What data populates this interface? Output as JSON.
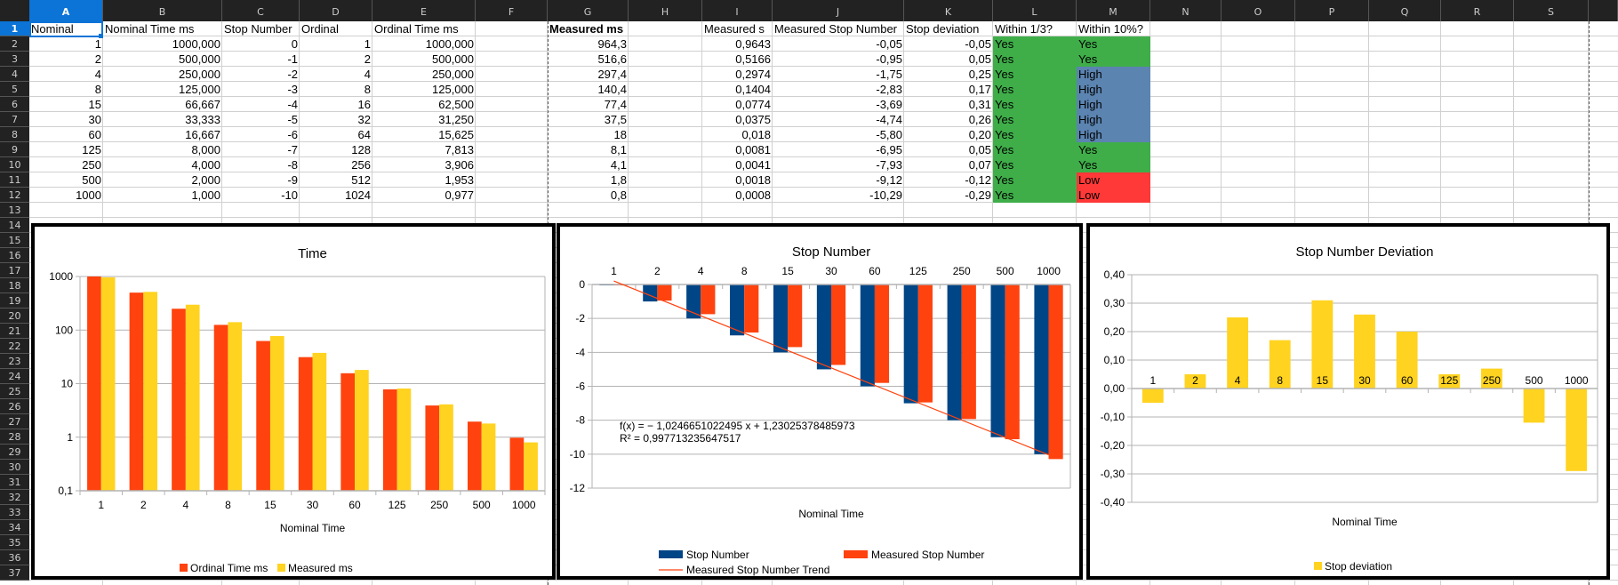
{
  "spreadsheet": {
    "columns": [
      "A",
      "B",
      "C",
      "D",
      "E",
      "F",
      "G",
      "H",
      "I",
      "J",
      "K",
      "L",
      "M",
      "N",
      "O",
      "P",
      "Q",
      "R",
      "S"
    ],
    "selected_cell": "A1",
    "rows": [
      "1",
      "2",
      "3",
      "4",
      "5",
      "6",
      "7",
      "8",
      "9",
      "10",
      "11",
      "12",
      "13",
      "14",
      "15",
      "16",
      "17",
      "18",
      "19",
      "20",
      "21",
      "22",
      "23",
      "24",
      "25",
      "26",
      "27",
      "28",
      "29",
      "30",
      "31",
      "32",
      "33",
      "34",
      "35",
      "36",
      "37"
    ],
    "headers": {
      "A": "Nominal",
      "B": "Nominal Time ms",
      "C": "Stop Number",
      "D": "Ordinal",
      "E": "Ordinal Time ms",
      "G": "Measured ms",
      "I": "Measured s",
      "J": "Measured Stop Number",
      "K": "Stop deviation",
      "L": "Within 1/3?",
      "M": "Within 10%?"
    },
    "data_rows": [
      {
        "A": "1",
        "B": "1000,000",
        "C": "0",
        "D": "1",
        "E": "1000,000",
        "G": "964,3",
        "I": "0,9643",
        "J": "-0,05",
        "K": "-0,05",
        "L": "Yes",
        "M": "Yes"
      },
      {
        "A": "2",
        "B": "500,000",
        "C": "-1",
        "D": "2",
        "E": "500,000",
        "G": "516,6",
        "I": "0,5166",
        "J": "-0,95",
        "K": "0,05",
        "L": "Yes",
        "M": "Yes"
      },
      {
        "A": "4",
        "B": "250,000",
        "C": "-2",
        "D": "4",
        "E": "250,000",
        "G": "297,4",
        "I": "0,2974",
        "J": "-1,75",
        "K": "0,25",
        "L": "Yes",
        "M": "High"
      },
      {
        "A": "8",
        "B": "125,000",
        "C": "-3",
        "D": "8",
        "E": "125,000",
        "G": "140,4",
        "I": "0,1404",
        "J": "-2,83",
        "K": "0,17",
        "L": "Yes",
        "M": "High"
      },
      {
        "A": "15",
        "B": "66,667",
        "C": "-4",
        "D": "16",
        "E": "62,500",
        "G": "77,4",
        "I": "0,0774",
        "J": "-3,69",
        "K": "0,31",
        "L": "Yes",
        "M": "High"
      },
      {
        "A": "30",
        "B": "33,333",
        "C": "-5",
        "D": "32",
        "E": "31,250",
        "G": "37,5",
        "I": "0,0375",
        "J": "-4,74",
        "K": "0,26",
        "L": "Yes",
        "M": "High"
      },
      {
        "A": "60",
        "B": "16,667",
        "C": "-6",
        "D": "64",
        "E": "15,625",
        "G": "18",
        "I": "0,018",
        "J": "-5,80",
        "K": "0,20",
        "L": "Yes",
        "M": "High"
      },
      {
        "A": "125",
        "B": "8,000",
        "C": "-7",
        "D": "128",
        "E": "7,813",
        "G": "8,1",
        "I": "0,0081",
        "J": "-6,95",
        "K": "0,05",
        "L": "Yes",
        "M": "Yes"
      },
      {
        "A": "250",
        "B": "4,000",
        "C": "-8",
        "D": "256",
        "E": "3,906",
        "G": "4,1",
        "I": "0,0041",
        "J": "-7,93",
        "K": "0,07",
        "L": "Yes",
        "M": "Yes"
      },
      {
        "A": "500",
        "B": "2,000",
        "C": "-9",
        "D": "512",
        "E": "1,953",
        "G": "1,8",
        "I": "0,0018",
        "J": "-9,12",
        "K": "-0,12",
        "L": "Yes",
        "M": "Low"
      },
      {
        "A": "1000",
        "B": "1,000",
        "C": "-10",
        "D": "1024",
        "E": "0,977",
        "G": "0,8",
        "I": "0,0008",
        "J": "-10,29",
        "K": "-0,29",
        "L": "Yes",
        "M": "Low"
      }
    ],
    "status_colors": {
      "Yes": "#3fae49",
      "High": "#5b84b1",
      "Low": "#ff3838"
    }
  },
  "chart_data": [
    {
      "type": "bar",
      "title": "Time",
      "xlabel": "Nominal Time",
      "ylabel": "",
      "yscale": "log",
      "ylim": [
        0.1,
        1000
      ],
      "ytick_labels": [
        "1000",
        "100",
        "10",
        "1",
        "0,1"
      ],
      "ytick_values": [
        1000,
        100,
        10,
        1,
        0.1
      ],
      "categories": [
        "1",
        "2",
        "4",
        "8",
        "15",
        "30",
        "60",
        "125",
        "250",
        "500",
        "1000"
      ],
      "series": [
        {
          "name": "Ordinal Time ms",
          "color": "#ff420e",
          "values": [
            1000,
            500,
            250,
            125,
            62.5,
            31.25,
            15.625,
            7.813,
            3.906,
            1.953,
            0.977
          ]
        },
        {
          "name": "Measured ms",
          "color": "#ffd320",
          "values": [
            964.3,
            516.6,
            297.4,
            140.4,
            77.4,
            37.5,
            18,
            8.1,
            4.1,
            1.8,
            0.8
          ]
        }
      ],
      "legend": "bottom",
      "grid": true
    },
    {
      "type": "bar",
      "title": "Stop Number",
      "xlabel": "Nominal Time",
      "ylabel": "",
      "ylim": [
        -12,
        0
      ],
      "ytick_labels": [
        "0",
        "-2",
        "-4",
        "-6",
        "-8",
        "-10",
        "-12"
      ],
      "ytick_values": [
        0,
        -2,
        -4,
        -6,
        -8,
        -10,
        -12
      ],
      "categories": [
        "1",
        "2",
        "4",
        "8",
        "15",
        "30",
        "60",
        "125",
        "250",
        "500",
        "1000"
      ],
      "series": [
        {
          "name": "Stop Number",
          "color": "#004586",
          "values": [
            0,
            -1,
            -2,
            -3,
            -4,
            -5,
            -6,
            -7,
            -8,
            -9,
            -10
          ]
        },
        {
          "name": "Measured Stop Number",
          "color": "#ff420e",
          "values": [
            -0.05,
            -0.95,
            -1.75,
            -2.83,
            -3.69,
            -4.74,
            -5.8,
            -6.95,
            -7.93,
            -9.12,
            -10.29
          ]
        }
      ],
      "trendline": {
        "name": "Measured Stop Number Trend",
        "color": "#ff420e",
        "slope": -1.0246651022495,
        "intercept": 1.23025378485973,
        "equation": "f(x) = − 1,0246651022495 x + 1,23025378485973",
        "r_squared": "R² = 0,997713235647517"
      },
      "legend": "bottom",
      "grid": true
    },
    {
      "type": "bar",
      "title": "Stop Number Deviation",
      "xlabel": "Nominal Time",
      "ylabel": "",
      "ylim": [
        -0.4,
        0.4
      ],
      "ytick_labels": [
        "0,40",
        "0,30",
        "0,20",
        "0,10",
        "0,00",
        "-0,10",
        "-0,20",
        "-0,30",
        "-0,40"
      ],
      "ytick_values": [
        0.4,
        0.3,
        0.2,
        0.1,
        0,
        -0.1,
        -0.2,
        -0.3,
        -0.4
      ],
      "categories": [
        "1",
        "2",
        "4",
        "8",
        "15",
        "30",
        "60",
        "125",
        "250",
        "500",
        "1000"
      ],
      "series": [
        {
          "name": "Stop deviation",
          "color": "#ffd320",
          "values": [
            -0.05,
            0.05,
            0.25,
            0.17,
            0.31,
            0.26,
            0.2,
            0.05,
            0.07,
            -0.12,
            -0.29
          ]
        }
      ],
      "legend": "bottom",
      "grid": true
    }
  ]
}
